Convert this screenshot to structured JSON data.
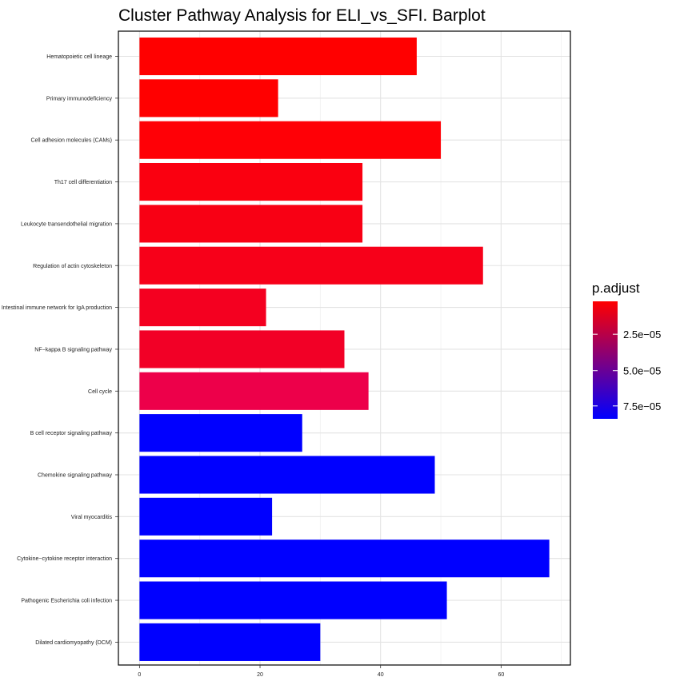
{
  "chart_data": {
    "type": "bar",
    "orientation": "horizontal",
    "title": "Cluster Pathway Analysis for ELI_vs_SFI. Barplot",
    "categories": [
      "Hematopoietic cell lineage",
      "Primary immunodeficiency",
      "Cell adhesion molecules (CAMs)",
      "Th17 cell differentiation",
      "Leukocyte transendothelial migration",
      "Regulation of actin cytoskeleton",
      "Intestinal immune network for IgA production",
      "NF−kappa B signaling pathway",
      "Cell cycle",
      "B cell receptor signaling pathway",
      "Chemokine signaling pathway",
      "Viral myocarditis",
      "Cytokine−cytokine receptor interaction",
      "Pathogenic Escherichia coli infection",
      "Dilated cardiomyopathy (DCM)"
    ],
    "values": [
      46,
      23,
      50,
      37,
      37,
      57,
      21,
      34,
      38,
      27,
      49,
      22,
      68,
      51,
      30
    ],
    "colors": [
      "#ff0000",
      "#ff0000",
      "#ff0006",
      "#fa0010",
      "#f80014",
      "#f70019",
      "#f40020",
      "#f20026",
      "#ed004a",
      "#0000ff",
      "#0000ff",
      "#0000ff",
      "#0000ff",
      "#0000ff",
      "#0000ff"
    ],
    "xlim": [
      -3.5,
      71.5
    ],
    "xticks": [
      0,
      20,
      40,
      60
    ],
    "xtick_labels": [
      "0",
      "20",
      "40",
      "60"
    ],
    "xlabel": "",
    "ylabel": "",
    "grid": true,
    "legend": {
      "title": "p.adjust",
      "position": "right",
      "gradient_top": "#ff0000",
      "gradient_bottom": "#0000ff",
      "ticks": [
        "2.5e−05",
        "5.0e−05",
        "7.5e−05"
      ],
      "tick_fractions": [
        0.28,
        0.59,
        0.89
      ]
    }
  }
}
